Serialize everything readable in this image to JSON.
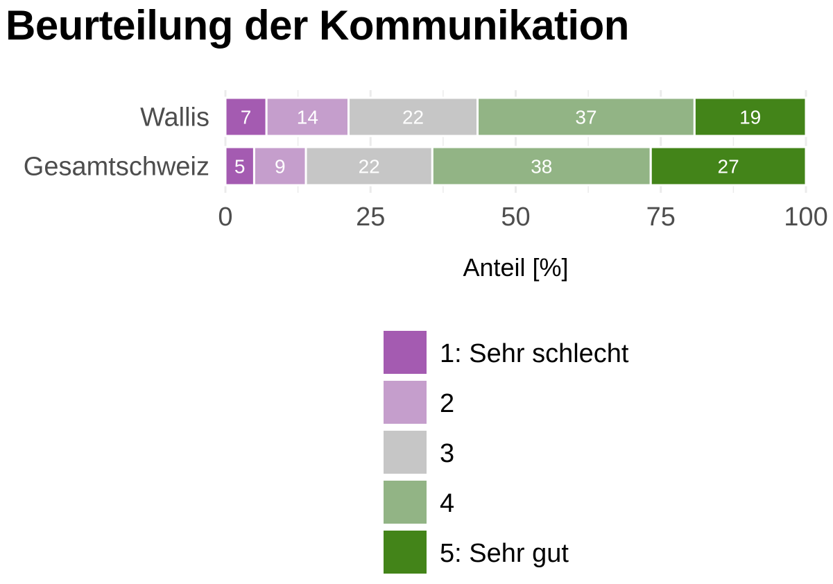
{
  "chart_data": {
    "type": "bar",
    "orientation": "horizontal",
    "stacked": true,
    "title": "Beurteilung der Kommunikation",
    "xlabel": "Anteil [%]",
    "ylabel": "",
    "xlim": [
      0,
      100
    ],
    "xticks": [
      "0",
      "25",
      "50",
      "75",
      "100"
    ],
    "grid": true,
    "legend_position": "bottom",
    "categories": [
      "Wallis",
      "Gesamtschweiz"
    ],
    "series": [
      {
        "name": "1: Sehr schlecht",
        "color": "#a45bb1",
        "values": [
          7,
          5
        ]
      },
      {
        "name": "2",
        "color": "#c59ecc",
        "values": [
          14,
          9
        ]
      },
      {
        "name": "3",
        "color": "#c6c6c6",
        "values": [
          22,
          22
        ]
      },
      {
        "name": "4",
        "color": "#92b485",
        "values": [
          37,
          38
        ]
      },
      {
        "name": "5: Sehr gut",
        "color": "#438419",
        "values": [
          19,
          27
        ]
      }
    ]
  }
}
